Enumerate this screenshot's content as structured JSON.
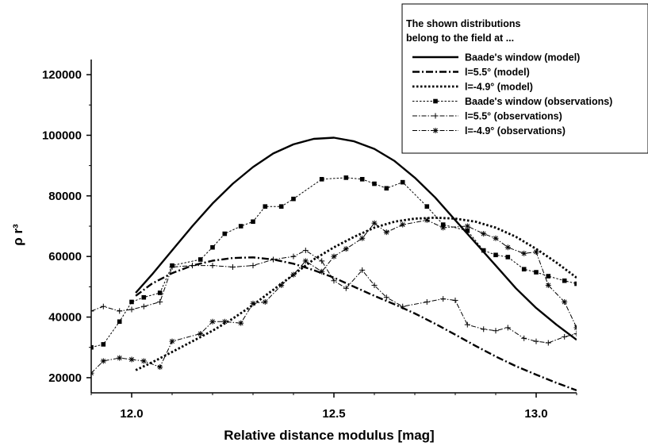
{
  "chart_data": {
    "type": "line",
    "xlabel": "Relative distance modulus [mag]",
    "ylabel": "ρ r³",
    "xlim": [
      11.9,
      13.1
    ],
    "ylim": [
      15000,
      125000
    ],
    "xticks": [
      12.0,
      12.5,
      13.0
    ],
    "xtick_labels": [
      "12.0",
      "12.5",
      "13.0"
    ],
    "yticks": [
      20000,
      40000,
      60000,
      80000,
      100000,
      120000
    ],
    "ytick_labels": [
      "20000",
      "40000",
      "60000",
      "80000",
      "100000",
      "120000"
    ],
    "grid": false,
    "legend": {
      "placement": "top-right",
      "title_lines": [
        "The shown distributions",
        "belong to the field at ..."
      ]
    },
    "series": [
      {
        "name": "Baade's window (model)",
        "style": "solid",
        "marker": "none",
        "x": [
          12.01,
          12.05,
          12.1,
          12.15,
          12.2,
          12.25,
          12.3,
          12.35,
          12.4,
          12.45,
          12.5,
          12.55,
          12.6,
          12.65,
          12.7,
          12.75,
          12.8,
          12.85,
          12.9,
          12.95,
          13.0,
          13.05,
          13.1
        ],
        "y": [
          48000,
          54000,
          62000,
          70000,
          77500,
          84000,
          89500,
          94000,
          97000,
          98800,
          99200,
          98000,
          95500,
          91500,
          86000,
          79500,
          72000,
          64500,
          57000,
          49500,
          43000,
          37500,
          32500
        ]
      },
      {
        "name": "l=5.5° (model)",
        "style": "dashdot",
        "marker": "none",
        "x": [
          12.01,
          12.05,
          12.1,
          12.15,
          12.2,
          12.25,
          12.3,
          12.35,
          12.4,
          12.45,
          12.5,
          12.55,
          12.6,
          12.65,
          12.7,
          12.75,
          12.8,
          12.85,
          12.9,
          12.95,
          13.0,
          13.05,
          13.1
        ],
        "y": [
          47000,
          51000,
          54500,
          57000,
          58600,
          59500,
          59700,
          59000,
          57600,
          55500,
          53000,
          50000,
          47000,
          44200,
          41200,
          37800,
          34200,
          30500,
          27000,
          23800,
          21000,
          18300,
          15800
        ]
      },
      {
        "name": "l=-4.9° (model)",
        "style": "dotted",
        "marker": "none",
        "x": [
          12.01,
          12.05,
          12.1,
          12.15,
          12.2,
          12.25,
          12.3,
          12.35,
          12.4,
          12.45,
          12.5,
          12.55,
          12.6,
          12.65,
          12.7,
          12.75,
          12.8,
          12.85,
          12.9,
          12.95,
          13.0,
          13.05,
          13.1
        ],
        "y": [
          22500,
          25000,
          28500,
          32000,
          35500,
          39500,
          44000,
          49000,
          54000,
          59000,
          63000,
          66500,
          69500,
          71500,
          72500,
          72800,
          72500,
          71500,
          69500,
          66500,
          62500,
          58000,
          53000
        ]
      },
      {
        "name": "Baade's window (observations)",
        "style": "dashed",
        "marker": "square",
        "x": [
          11.9,
          11.93,
          11.97,
          12.0,
          12.03,
          12.07,
          12.1,
          12.17,
          12.2,
          12.23,
          12.27,
          12.3,
          12.33,
          12.37,
          12.4,
          12.47,
          12.53,
          12.57,
          12.6,
          12.63,
          12.67,
          12.73,
          12.77,
          12.83,
          12.87,
          12.9,
          12.93,
          12.97,
          13.0,
          13.03,
          13.07,
          13.1
        ],
        "y": [
          30000,
          31000,
          38500,
          45000,
          46500,
          48000,
          57000,
          59000,
          63000,
          67500,
          70000,
          71500,
          76500,
          76500,
          79000,
          85500,
          86000,
          85500,
          84000,
          82500,
          84500,
          76500,
          70500,
          68500,
          62000,
          60500,
          59800,
          55800,
          54800,
          53500,
          52000,
          51000
        ]
      },
      {
        "name": "l=5.5° (observations)",
        "style": "dashdot",
        "marker": "plus",
        "x": [
          11.9,
          11.93,
          11.97,
          12.0,
          12.03,
          12.07,
          12.1,
          12.15,
          12.2,
          12.25,
          12.3,
          12.35,
          12.4,
          12.43,
          12.47,
          12.5,
          12.53,
          12.57,
          12.6,
          12.63,
          12.67,
          12.73,
          12.77,
          12.8,
          12.83,
          12.87,
          12.9,
          12.93,
          12.97,
          13.0,
          13.03,
          13.07,
          13.1
        ],
        "y": [
          42000,
          43500,
          42000,
          42500,
          43500,
          45000,
          56500,
          57000,
          57000,
          56500,
          57000,
          59000,
          60000,
          62000,
          58500,
          52000,
          49500,
          55500,
          50500,
          46500,
          43500,
          45000,
          46000,
          45500,
          37500,
          36000,
          35500,
          36500,
          33000,
          32000,
          31500,
          33500,
          34500
        ]
      },
      {
        "name": "l=-4.9° (observations)",
        "style": "dashdot",
        "marker": "asterisk",
        "x": [
          11.9,
          11.93,
          11.97,
          12.0,
          12.03,
          12.07,
          12.1,
          12.17,
          12.2,
          12.23,
          12.27,
          12.3,
          12.33,
          12.37,
          12.4,
          12.43,
          12.47,
          12.5,
          12.53,
          12.57,
          12.6,
          12.63,
          12.67,
          12.73,
          12.77,
          12.83,
          12.87,
          12.9,
          12.93,
          12.97,
          13.0,
          13.03,
          13.07,
          13.1
        ],
        "y": [
          21500,
          25500,
          26500,
          26000,
          25500,
          23500,
          32000,
          34500,
          38500,
          38500,
          38000,
          44500,
          45000,
          50500,
          54000,
          58500,
          55000,
          60000,
          62500,
          66000,
          71000,
          68000,
          70500,
          72000,
          69500,
          70000,
          67500,
          66000,
          63000,
          61000,
          61500,
          50500,
          45000,
          36500
        ]
      }
    ]
  }
}
